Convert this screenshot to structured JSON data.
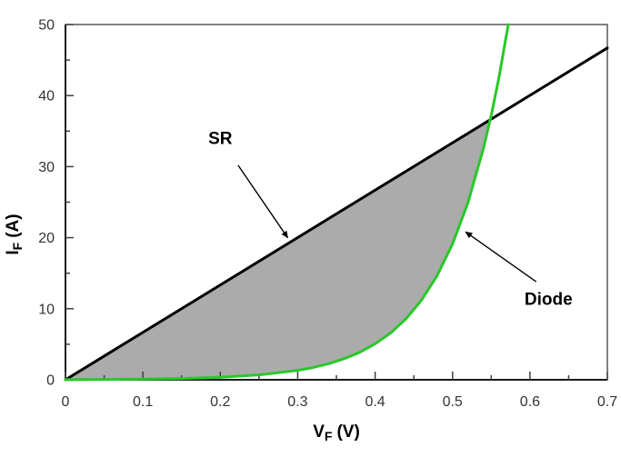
{
  "page": {
    "background": "#ffffff"
  },
  "chart_data": {
    "type": "line",
    "title": "",
    "xlabel": {
      "base": "V",
      "sub": "F",
      "unit": "(V)"
    },
    "ylabel": {
      "base": "I",
      "sub": "F",
      "unit": "(A)"
    },
    "xlim": [
      0,
      0.7
    ],
    "ylim": [
      0,
      50
    ],
    "x_tick_values": [
      0,
      0.1,
      0.2,
      0.3,
      0.4,
      0.5,
      0.6,
      0.7
    ],
    "x_tick_labels": [
      "0",
      "0.1",
      "0.2",
      "0.3",
      "0.4",
      "0.5",
      "0.6",
      "0.7"
    ],
    "x_minor_step": 0.05,
    "y_tick_values": [
      0,
      10,
      20,
      30,
      40,
      50
    ],
    "y_tick_labels": [
      "0",
      "10",
      "20",
      "30",
      "40",
      "50"
    ],
    "y_minor_step": 5,
    "grid": false,
    "legend": "none",
    "axis_color": "#3f3f3f",
    "tick_label_color": "#333333",
    "series": [
      {
        "name": "SR",
        "color": "#000000",
        "width": 3,
        "x": [
          0,
          0.7
        ],
        "y": [
          0,
          46.7
        ]
      },
      {
        "name": "Diode",
        "color": "#28c828",
        "width": 3,
        "x": [
          0,
          0.05,
          0.1,
          0.15,
          0.2,
          0.25,
          0.3,
          0.32,
          0.34,
          0.36,
          0.38,
          0.4,
          0.42,
          0.44,
          0.46,
          0.48,
          0.5,
          0.52,
          0.54,
          0.55,
          0.56,
          0.572
        ],
        "y": [
          0.02,
          0.05,
          0.09,
          0.18,
          0.35,
          0.68,
          1.33,
          1.73,
          2.26,
          2.96,
          3.86,
          5.06,
          6.58,
          8.59,
          11.22,
          14.64,
          19.12,
          24.96,
          32.6,
          37.24,
          42.55,
          50
        ]
      }
    ],
    "fill_between": {
      "upper": "SR",
      "lower": "Diode",
      "x_range": [
        0,
        0.548
      ],
      "color": "#ababab"
    },
    "annotations": [
      {
        "text": "SR",
        "text_x": 0.2,
        "text_y": 34.0,
        "arrow_from_x": 0.223,
        "arrow_from_y": 30.2,
        "arrow_to_x": 0.287,
        "arrow_to_y": 20.0
      },
      {
        "text": "Diode",
        "text_x": 0.624,
        "text_y": 11.4,
        "arrow_from_x": 0.608,
        "arrow_from_y": 13.8,
        "arrow_to_x": 0.517,
        "arrow_to_y": 20.8
      }
    ]
  }
}
